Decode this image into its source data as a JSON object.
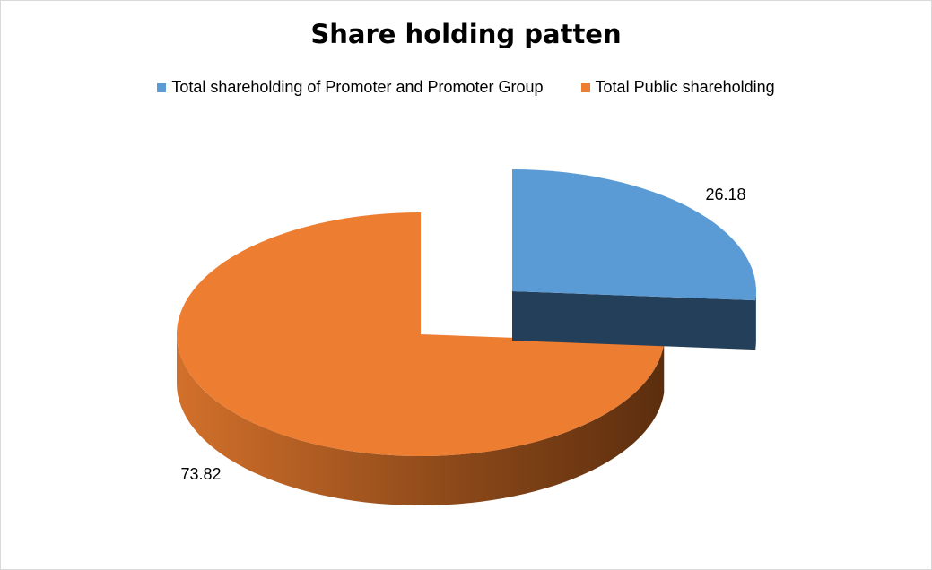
{
  "chart_data": {
    "type": "pie",
    "title": "Share holding patten",
    "categories": [
      "Total shareholding of Promoter and Promoter Group",
      "Total Public shareholding"
    ],
    "values": [
      26.18,
      73.82
    ],
    "data_labels": [
      "26.18",
      "73.82"
    ],
    "colors": [
      "#5b9bd5",
      "#ed7d31"
    ],
    "side_colors": [
      "#243f59",
      "#7a3f14"
    ],
    "legend_position": "top",
    "style": "3d-exploded"
  }
}
